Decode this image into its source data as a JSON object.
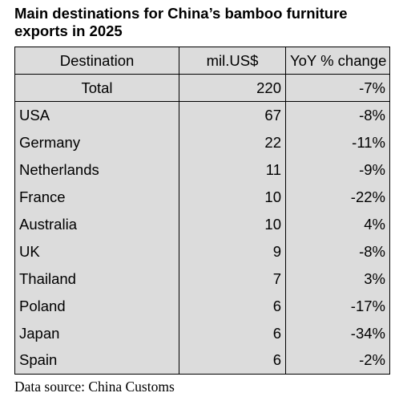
{
  "title": {
    "line1": "Main destinations for China’s bamboo furniture",
    "line2": "exports in 2025"
  },
  "table": {
    "headers": [
      "Destination",
      "mil.US$",
      "YoY % change"
    ],
    "total": {
      "destination": "Total",
      "value": "220",
      "change": "-7%"
    },
    "rows": [
      {
        "destination": "USA",
        "value": "67",
        "change": "-8%"
      },
      {
        "destination": "Germany",
        "value": "22",
        "change": "-11%"
      },
      {
        "destination": "Netherlands",
        "value": "11",
        "change": "-9%"
      },
      {
        "destination": "France",
        "value": "10",
        "change": "-22%"
      },
      {
        "destination": "Australia",
        "value": "10",
        "change": "4%"
      },
      {
        "destination": "UK",
        "value": "9",
        "change": "-8%"
      },
      {
        "destination": "Thailand",
        "value": "7",
        "change": "3%"
      },
      {
        "destination": "Poland",
        "value": "6",
        "change": "-17%"
      },
      {
        "destination": "Japan",
        "value": "6",
        "change": "-34%"
      },
      {
        "destination": "Spain",
        "value": "6",
        "change": "-2%"
      }
    ]
  },
  "source": "Data source: China Customs"
}
